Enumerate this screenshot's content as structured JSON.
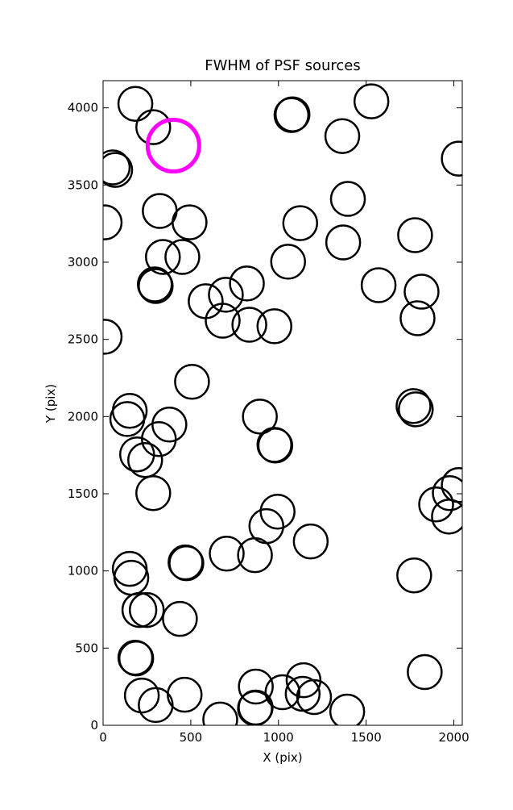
{
  "chart_data": {
    "type": "scatter",
    "title": "FWHM of PSF sources",
    "x_label": "X (pix)",
    "y_label": "Y (pix)",
    "xlim": [
      0,
      2048
    ],
    "ylim": [
      0,
      4176
    ],
    "xticks": [
      0,
      500,
      1000,
      1500,
      2000
    ],
    "yticks": [
      0,
      500,
      1000,
      1500,
      2000,
      2500,
      3000,
      3500,
      4000
    ],
    "series": [
      {
        "color": "#000000",
        "marker_size": 21,
        "x": [
          184,
          286,
          69,
          55,
          1074,
          1080,
          1530,
          1364,
          2028,
          1396,
          323,
          493,
          9,
          1124,
          1369,
          1779,
          341,
          452,
          1055,
          300,
          295,
          820,
          1571,
          1816,
          585,
          700,
          682,
          834,
          977,
          1793,
          9,
          507,
          152,
          138,
          894,
          378,
          1770,
          1783,
          318,
          982,
          977,
          194,
          240,
          286,
          2028,
          1977,
          1899,
          1972,
          995,
          931,
          1184,
          705,
          866,
          475,
          470,
          152,
          161,
          1774,
          207,
          249,
          438,
          189,
          184,
          1834,
          871,
          1143,
          1138,
          1203,
          1023,
          221,
          465,
          300,
          866,
          870,
          668,
          1392
        ],
        "y": [
          4026,
          3875,
          3598,
          3614,
          3953,
          3958,
          4042,
          3817,
          3671,
          3410,
          3332,
          3258,
          3258,
          3253,
          3128,
          3175,
          3034,
          3034,
          3003,
          2846,
          2856,
          2862,
          2851,
          2809,
          2747,
          2789,
          2621,
          2595,
          2585,
          2637,
          2517,
          2225,
          2037,
          1984,
          2000,
          1948,
          2068,
          2047,
          1854,
          1812,
          1817,
          1755,
          1718,
          1504,
          1556,
          1504,
          1431,
          1352,
          1384,
          1290,
          1191,
          1112,
          1102,
          1050,
          1055,
          1013,
          956,
          971,
          747,
          747,
          689,
          433,
          438,
          345,
          251,
          292,
          204,
          183,
          214,
          193,
          198,
          131,
          110,
          115,
          37,
          89
        ]
      },
      {
        "color": "#ff00ff",
        "marker_size": 32,
        "x": [
          401
        ],
        "y": [
          3755
        ]
      }
    ]
  }
}
